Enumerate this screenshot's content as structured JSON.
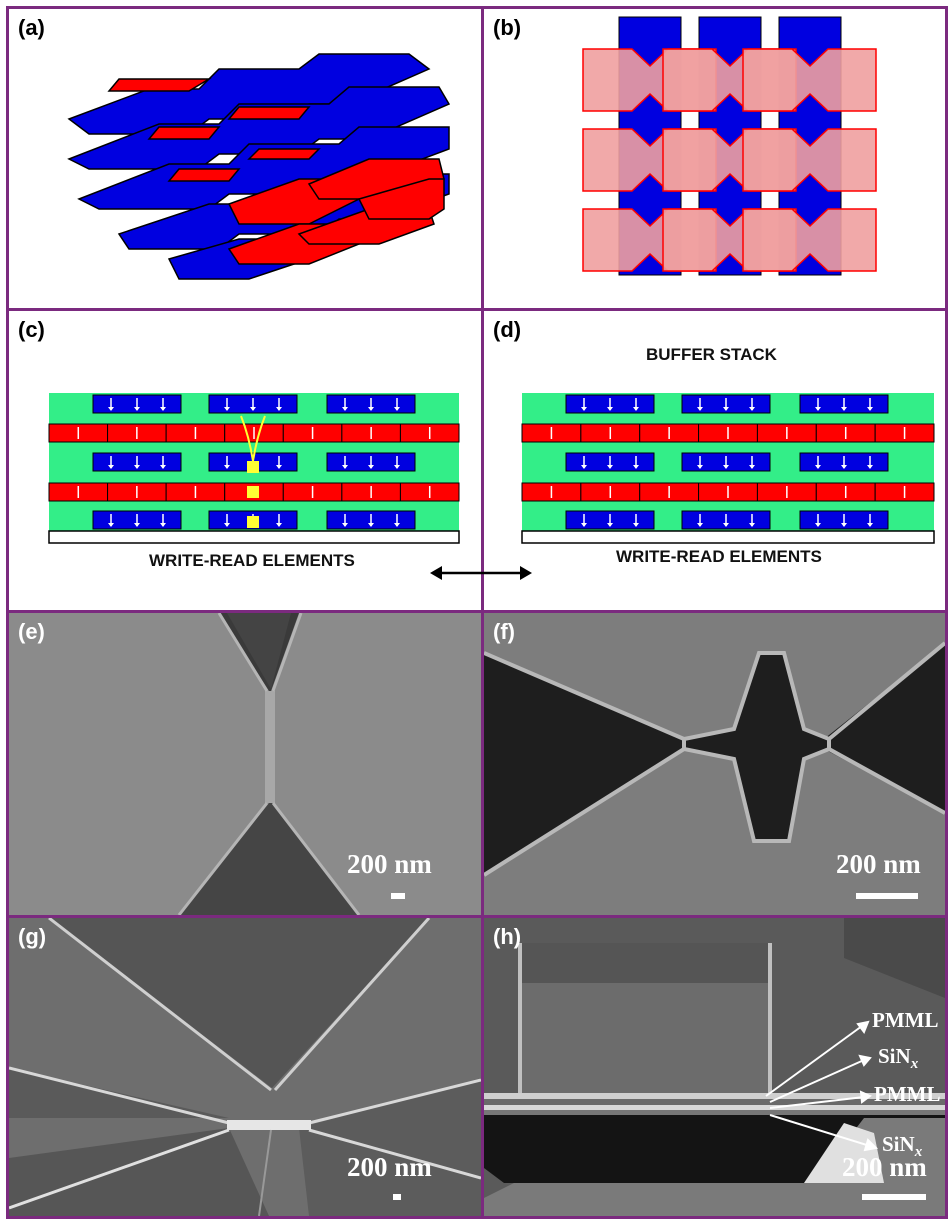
{
  "panels": {
    "a": {
      "label": "(a)"
    },
    "b": {
      "label": "(b)"
    },
    "c": {
      "label": "(c)",
      "caption": "WRITE-READ ELEMENTS"
    },
    "d": {
      "label": "(d)",
      "title": "BUFFER STACK",
      "caption": "WRITE-READ ELEMENTS"
    },
    "e": {
      "label": "(e)",
      "scale": "200 nm"
    },
    "f": {
      "label": "(f)",
      "scale": "200 nm"
    },
    "g": {
      "label": "(g)",
      "scale": "200 nm"
    },
    "h": {
      "label": "(h)",
      "scale": "200 nm",
      "layers": [
        "PMML",
        "SiN",
        "PMML",
        "SiN"
      ],
      "layer_subscript": "x"
    }
  },
  "colors": {
    "frame": "#7b2a7f",
    "blue": "#0000e0",
    "red": "#ff0000",
    "pink": "#f0a0a0",
    "green": "#33ee88"
  }
}
